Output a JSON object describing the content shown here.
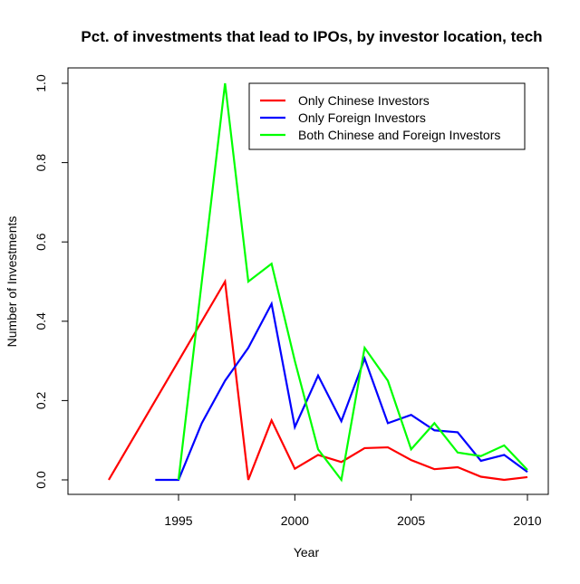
{
  "chart_data": {
    "type": "line",
    "title": "Pct. of investments that lead to IPOs, by investor location, tech",
    "xlabel": "Year",
    "ylabel": "Number of Investments",
    "xlim": [
      1991.5,
      2010.5
    ],
    "ylim": [
      0,
      1
    ],
    "xticks": [
      1995,
      2000,
      2005,
      2010
    ],
    "yticks": [
      0.0,
      0.2,
      0.4,
      0.6,
      0.8,
      1.0
    ],
    "ytick_labels": [
      "0.0",
      "0.2",
      "0.4",
      "0.6",
      "0.8",
      "1.0"
    ],
    "grid": false,
    "legend_position": "top-right",
    "series": [
      {
        "name": "Only Chinese Investors",
        "color": "#ff0000",
        "x": [
          1992,
          1997,
          1998,
          1999,
          2000,
          2001,
          2002,
          2003,
          2004,
          2005,
          2006,
          2007,
          2008,
          2009,
          2010
        ],
        "values": [
          0,
          0.5,
          0,
          0.15,
          0.028,
          0.063,
          0.045,
          0.08,
          0.082,
          0.05,
          0.027,
          0.032,
          0.008,
          0,
          0.007
        ]
      },
      {
        "name": "Only Foreign Investors",
        "color": "#0000ff",
        "x": [
          1994,
          1995,
          1996,
          1997,
          1998,
          1999,
          2000,
          2001,
          2002,
          2003,
          2004,
          2005,
          2006,
          2007,
          2008,
          2009,
          2010
        ],
        "values": [
          0,
          0,
          0.143,
          0.25,
          0.333,
          0.444,
          0.133,
          0.263,
          0.148,
          0.306,
          0.143,
          0.164,
          0.125,
          0.12,
          0.048,
          0.063,
          0.02
        ]
      },
      {
        "name": "Both Chinese and Foreign Investors",
        "color": "#00ff00",
        "x": [
          1995,
          1997,
          1998,
          1999,
          2000,
          2001,
          2002,
          2003,
          2004,
          2005,
          2006,
          2007,
          2008,
          2009,
          2010
        ],
        "values": [
          0,
          1.0,
          0.5,
          0.545,
          0.3,
          0.077,
          0,
          0.333,
          0.25,
          0.077,
          0.143,
          0.069,
          0.06,
          0.087,
          0.025
        ]
      }
    ]
  }
}
